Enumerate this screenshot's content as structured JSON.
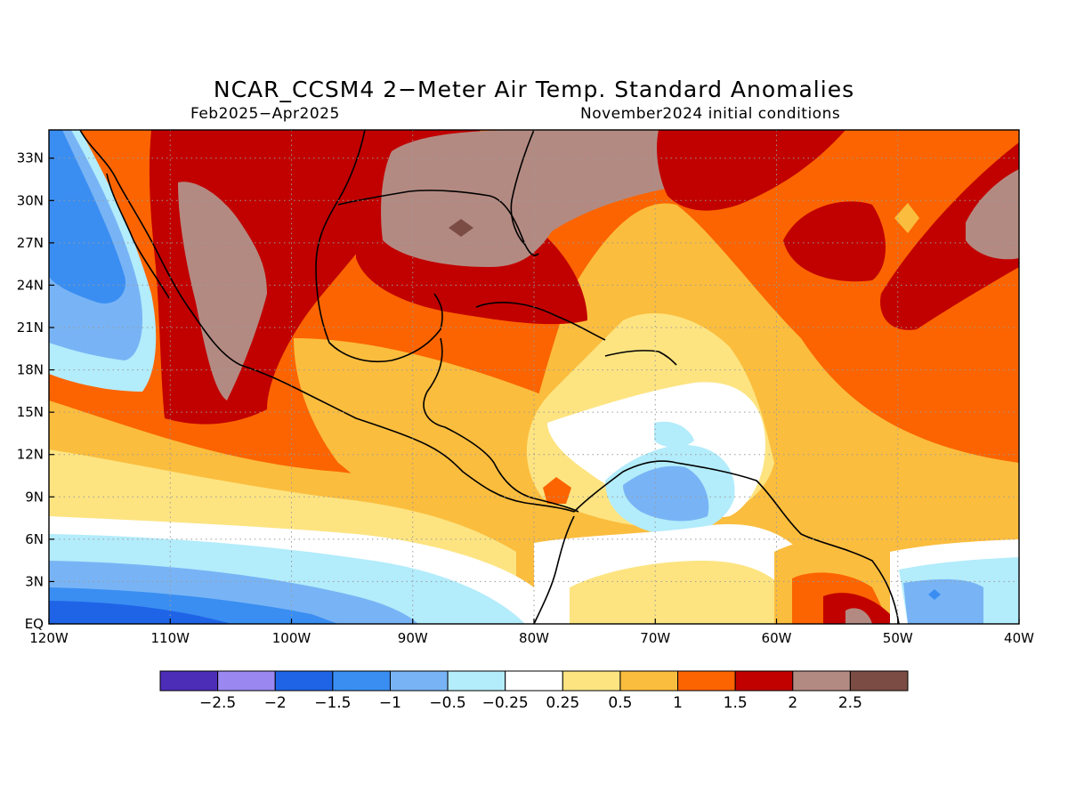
{
  "title": "NCAR_CCSM4 2−Meter Air Temp. Standard Anomalies",
  "period": "Feb2025−Apr2025",
  "init": "November2024 initial conditions",
  "map": {
    "lon_range": [
      -120,
      -40
    ],
    "lat_range": [
      0,
      35
    ],
    "lon_ticks": [
      {
        "value": -120,
        "label": "120W"
      },
      {
        "value": -110,
        "label": "110W"
      },
      {
        "value": -100,
        "label": "100W"
      },
      {
        "value": -90,
        "label": "90W"
      },
      {
        "value": -80,
        "label": "80W"
      },
      {
        "value": -70,
        "label": "70W"
      },
      {
        "value": -60,
        "label": "60W"
      },
      {
        "value": -50,
        "label": "50W"
      },
      {
        "value": -40,
        "label": "40W"
      }
    ],
    "lat_ticks": [
      {
        "value": 0,
        "label": "EQ"
      },
      {
        "value": 3,
        "label": "3N"
      },
      {
        "value": 6,
        "label": "6N"
      },
      {
        "value": 9,
        "label": "9N"
      },
      {
        "value": 12,
        "label": "12N"
      },
      {
        "value": 15,
        "label": "15N"
      },
      {
        "value": 18,
        "label": "18N"
      },
      {
        "value": 21,
        "label": "21N"
      },
      {
        "value": 24,
        "label": "24N"
      },
      {
        "value": 27,
        "label": "27N"
      },
      {
        "value": 30,
        "label": "30N"
      },
      {
        "value": 33,
        "label": "33N"
      }
    ],
    "grid": "dotted"
  },
  "colorbar": {
    "colors": [
      "#4b2db8",
      "#9b87f0",
      "#1f64e6",
      "#3a8ef2",
      "#78b4f5",
      "#b3ecfb",
      "#ffffff",
      "#fde481",
      "#fbbd3e",
      "#fb6400",
      "#c10000",
      "#b38a82",
      "#7a4c44"
    ],
    "labels": [
      "−2.5",
      "−2",
      "−1.5",
      "−1",
      "−0.5",
      "−0.25",
      "0.25",
      "0.5",
      "1",
      "1.5",
      "2",
      "2.5"
    ]
  }
}
